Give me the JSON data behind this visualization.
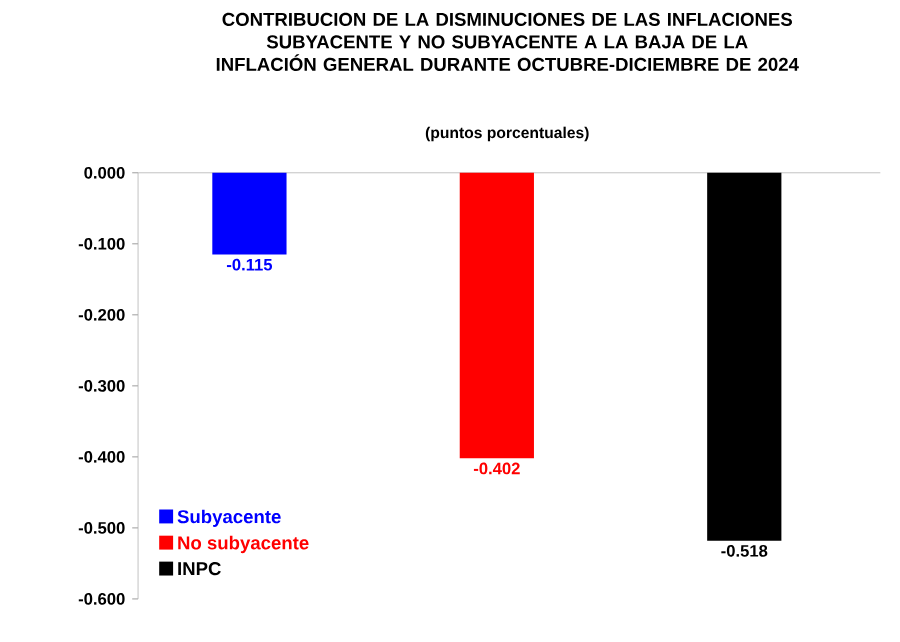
{
  "chart_data": {
    "type": "bar",
    "title": "CONTRIBUCION DE LA DISMINUCIONES DE LAS INFLACIONES SUBYACENTE Y NO SUBYACENTE A LA BAJA DE  LA INFLACIÓN GENERAL DURANTE OCTUBRE-DICIEMBRE DE 2024",
    "subtitle": "(puntos porcentuales)",
    "categories": [
      null,
      null,
      null
    ],
    "series": [
      {
        "name": "Subyacente",
        "color": "#0000ff",
        "values": [
          -0.115,
          null,
          null
        ],
        "value_labels": [
          "-0.115",
          null,
          null
        ]
      },
      {
        "name": "No subyacente",
        "color": "#ff0000",
        "values": [
          null,
          -0.402,
          null
        ],
        "value_labels": [
          null,
          "-0.402",
          null
        ]
      },
      {
        "name": "INPC",
        "color": "#000000",
        "values": [
          null,
          null,
          -0.518
        ],
        "value_labels": [
          null,
          null,
          "-0.518"
        ]
      }
    ],
    "ylim": [
      -0.6,
      0
    ],
    "yticks": [
      {
        "value": 0,
        "label": "0.000"
      },
      {
        "value": -0.1,
        "label": "-0.100"
      },
      {
        "value": -0.2,
        "label": "-0.200"
      },
      {
        "value": -0.3,
        "label": "-0.300"
      },
      {
        "value": -0.4,
        "label": "-0.400"
      },
      {
        "value": -0.5,
        "label": "-0.500"
      },
      {
        "value": -0.6,
        "label": "-0.600"
      }
    ],
    "legend": "bottom left",
    "tick_labels": "y"
  }
}
